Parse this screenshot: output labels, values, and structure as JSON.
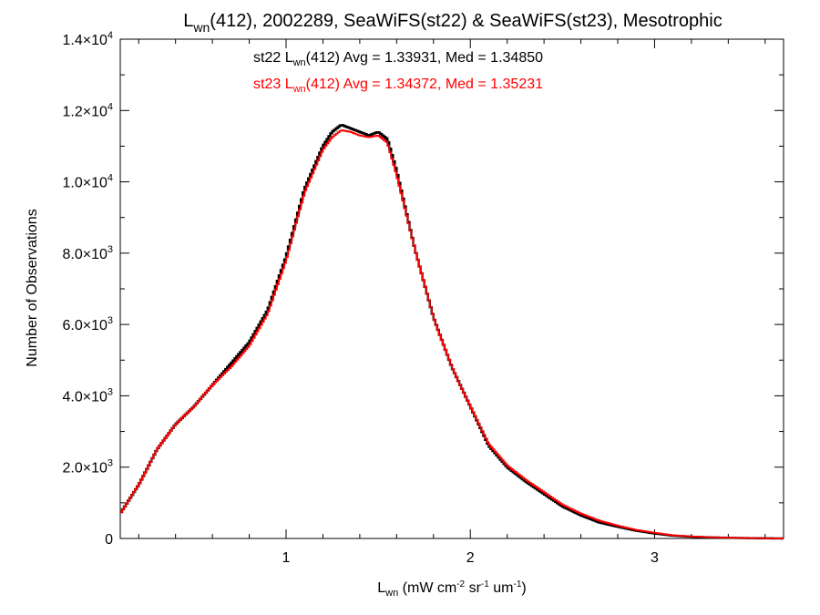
{
  "chart_data": {
    "type": "line",
    "title": {
      "prefix": "L",
      "sub": "wn",
      "rest": "(412), 2002289, SeaWiFS(st22) & SeaWiFS(st23), Mesotrophic"
    },
    "xlabel": {
      "prefix": "L",
      "sub": "wn",
      "rest1": " (mW cm",
      "sup1": "-2",
      "rest2": " sr",
      "sup2": "-1",
      "rest3": " um",
      "sup3": "-1",
      "rest4": ")"
    },
    "ylabel": "Number of Observations",
    "xlim": [
      0.1,
      3.7
    ],
    "ylim": [
      0,
      14000
    ],
    "xticks": [
      {
        "value": 1,
        "label": "1"
      },
      {
        "value": 2,
        "label": "2"
      },
      {
        "value": 3,
        "label": "3"
      }
    ],
    "yticks": [
      {
        "value": 0,
        "label": "0",
        "mant": "",
        "exp": ""
      },
      {
        "value": 2000,
        "label": "",
        "mant": "2.0×10",
        "exp": "3"
      },
      {
        "value": 4000,
        "label": "",
        "mant": "4.0×10",
        "exp": "3"
      },
      {
        "value": 6000,
        "label": "",
        "mant": "6.0×10",
        "exp": "3"
      },
      {
        "value": 8000,
        "label": "",
        "mant": "8.0×10",
        "exp": "3"
      },
      {
        "value": 10000,
        "label": "",
        "mant": "1.0×10",
        "exp": "4"
      },
      {
        "value": 12000,
        "label": "",
        "mant": "1.2×10",
        "exp": "4"
      },
      {
        "value": 14000,
        "label": "",
        "mant": "1.4×10",
        "exp": "4"
      }
    ],
    "annotations": [
      {
        "prefix": "st22 L",
        "sub": "wn",
        "rest": "(412) Avg = 1.33931, Med = 1.34850",
        "color": "#000000"
      },
      {
        "prefix": "st23 L",
        "sub": "wn",
        "rest": "(412) Avg = 1.34372, Med = 1.35231",
        "color": "#ff0000"
      }
    ],
    "series": [
      {
        "color": "#000000",
        "x": [
          0.1,
          0.2,
          0.3,
          0.4,
          0.5,
          0.6,
          0.7,
          0.8,
          0.9,
          1.0,
          1.1,
          1.2,
          1.25,
          1.3,
          1.35,
          1.4,
          1.45,
          1.5,
          1.55,
          1.6,
          1.7,
          1.8,
          1.9,
          2.0,
          2.1,
          2.2,
          2.3,
          2.4,
          2.5,
          2.6,
          2.7,
          2.8,
          2.9,
          3.0,
          3.1,
          3.2,
          3.3,
          3.4,
          3.5,
          3.6,
          3.7
        ],
        "y": [
          700,
          1500,
          2500,
          3200,
          3700,
          4300,
          4900,
          5500,
          6400,
          7900,
          9800,
          11000,
          11400,
          11600,
          11500,
          11400,
          11300,
          11400,
          11200,
          10300,
          8100,
          6200,
          4800,
          3700,
          2600,
          2000,
          1600,
          1250,
          900,
          650,
          450,
          330,
          220,
          140,
          80,
          50,
          30,
          20,
          10,
          5,
          0
        ]
      },
      {
        "color": "#ff0000",
        "x": [
          0.1,
          0.2,
          0.3,
          0.4,
          0.5,
          0.6,
          0.7,
          0.8,
          0.9,
          1.0,
          1.1,
          1.2,
          1.25,
          1.3,
          1.35,
          1.4,
          1.45,
          1.5,
          1.55,
          1.6,
          1.7,
          1.8,
          1.9,
          2.0,
          2.1,
          2.2,
          2.3,
          2.4,
          2.5,
          2.6,
          2.7,
          2.8,
          2.9,
          3.0,
          3.1,
          3.2,
          3.3,
          3.4,
          3.5,
          3.6,
          3.7
        ],
        "y": [
          700,
          1500,
          2500,
          3200,
          3700,
          4300,
          4800,
          5400,
          6300,
          7800,
          9700,
          10900,
          11250,
          11450,
          11400,
          11300,
          11250,
          11300,
          11100,
          10200,
          8100,
          6200,
          4800,
          3700,
          2650,
          2050,
          1650,
          1300,
          950,
          700,
          500,
          360,
          240,
          160,
          90,
          55,
          35,
          22,
          12,
          6,
          0
        ]
      }
    ]
  }
}
